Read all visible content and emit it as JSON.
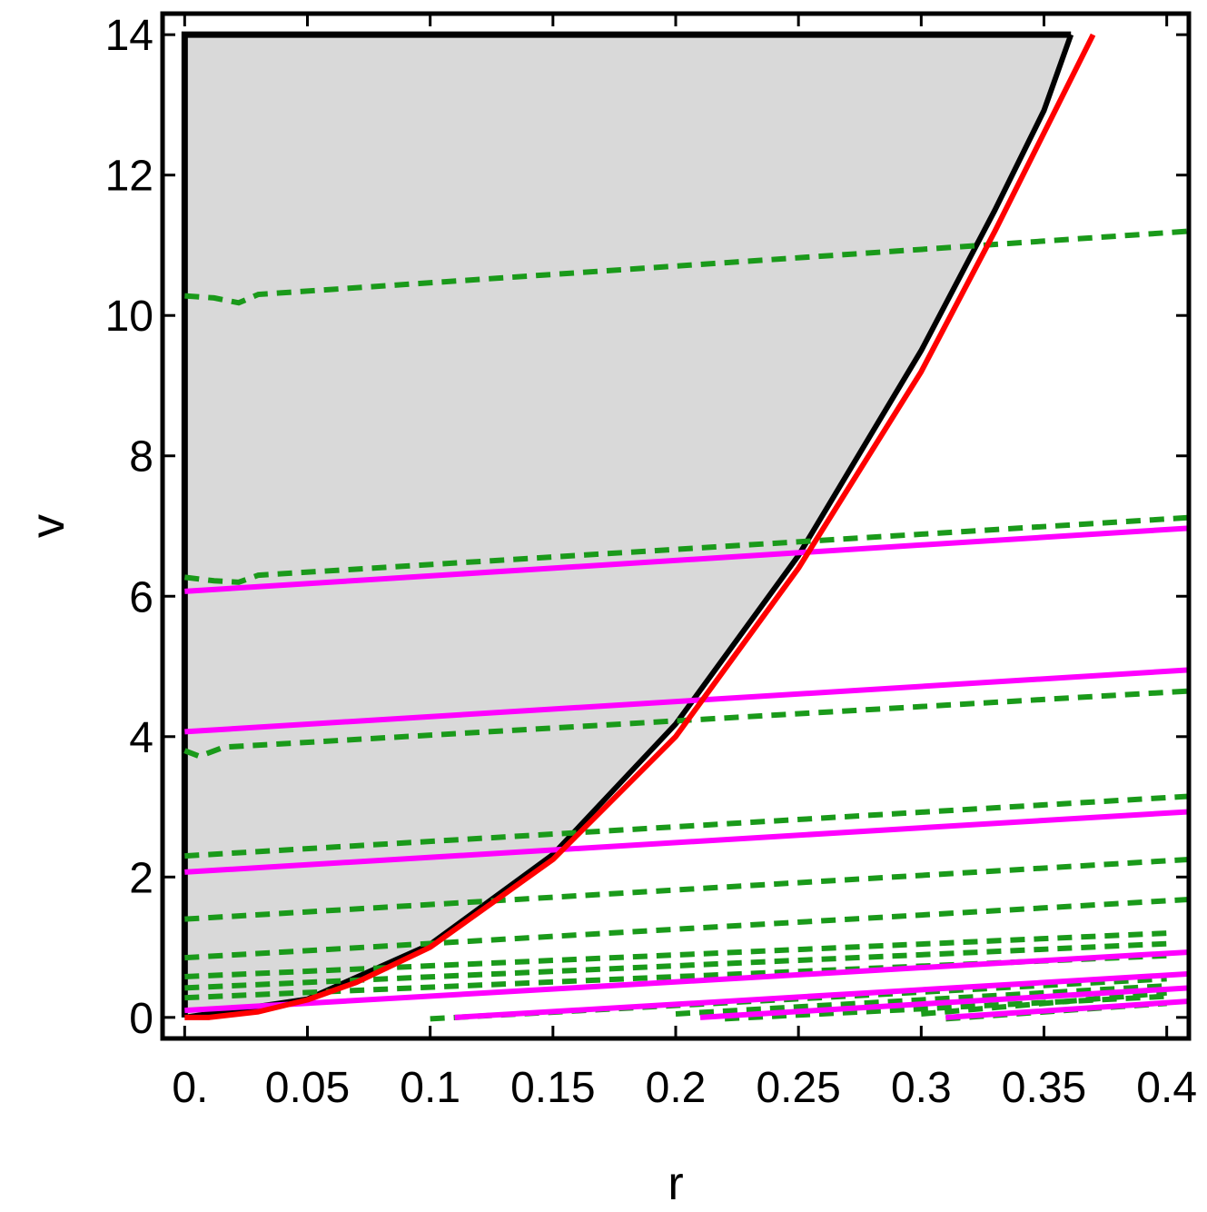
{
  "chart_data": {
    "type": "line",
    "xlabel": "r",
    "ylabel": "v",
    "xlim": [
      -0.009,
      0.409
    ],
    "ylim": [
      -0.3,
      14.3
    ],
    "x_ticks": [
      {
        "value": 0,
        "label": "0."
      },
      {
        "value": 0.05,
        "label": "0.05"
      },
      {
        "value": 0.1,
        "label": "0.1"
      },
      {
        "value": 0.15,
        "label": "0.15"
      },
      {
        "value": 0.2,
        "label": "0.2"
      },
      {
        "value": 0.25,
        "label": "0.25"
      },
      {
        "value": 0.3,
        "label": "0.3"
      },
      {
        "value": 0.35,
        "label": "0.35"
      },
      {
        "value": 0.4,
        "label": "0.4"
      }
    ],
    "y_ticks": [
      {
        "value": 0,
        "label": "0"
      },
      {
        "value": 2,
        "label": "2"
      },
      {
        "value": 4,
        "label": "4"
      },
      {
        "value": 6,
        "label": "6"
      },
      {
        "value": 8,
        "label": "8"
      },
      {
        "value": 10,
        "label": "10"
      },
      {
        "value": 12,
        "label": "12"
      },
      {
        "value": 14,
        "label": "14"
      }
    ],
    "colors": {
      "shaded_region": "#d9d9d9",
      "boundary": "#000000",
      "red_curve": "#ff0000",
      "magenta_lines": "#ff00ff",
      "green_dashed": "#1a9a1a"
    },
    "shaded_region": {
      "upper_v": 14,
      "boundary_points": [
        [
          0,
          0
        ],
        [
          0.05,
          0.26
        ],
        [
          0.1,
          1.04
        ],
        [
          0.15,
          2.32
        ],
        [
          0.2,
          4.18
        ],
        [
          0.25,
          6.58
        ],
        [
          0.3,
          9.5
        ],
        [
          0.33,
          11.5
        ],
        [
          0.35,
          12.92
        ],
        [
          0.361,
          14
        ]
      ]
    },
    "red_curve": {
      "points": [
        [
          0,
          0
        ],
        [
          0.01,
          0.0
        ],
        [
          0.03,
          0.08
        ],
        [
          0.05,
          0.25
        ],
        [
          0.07,
          0.5
        ],
        [
          0.1,
          1.0
        ],
        [
          0.15,
          2.25
        ],
        [
          0.2,
          4.0
        ],
        [
          0.25,
          6.4
        ],
        [
          0.3,
          9.2
        ],
        [
          0.33,
          11.2
        ],
        [
          0.35,
          12.6
        ],
        [
          0.37,
          14
        ]
      ]
    },
    "magenta_series": [
      {
        "x": [
          0,
          0.409
        ],
        "y": [
          6.07,
          6.97
        ]
      },
      {
        "x": [
          0,
          0.409
        ],
        "y": [
          4.07,
          4.95
        ]
      },
      {
        "x": [
          0,
          0.409
        ],
        "y": [
          2.07,
          2.93
        ]
      },
      {
        "x": [
          0,
          0.409
        ],
        "y": [
          0.1,
          0.93
        ]
      },
      {
        "x": [
          0.11,
          0.409
        ],
        "y": [
          0.0,
          0.62
        ]
      },
      {
        "x": [
          0.21,
          0.409
        ],
        "y": [
          0.0,
          0.42
        ]
      },
      {
        "x": [
          0.31,
          0.409
        ],
        "y": [
          0.0,
          0.23
        ]
      }
    ],
    "green_dashed_series": [
      {
        "x": [
          0,
          0.012,
          0.022,
          0.03,
          0.409
        ],
        "y": [
          10.28,
          10.25,
          10.18,
          10.3,
          11.2
        ]
      },
      {
        "x": [
          0,
          0.012,
          0.022,
          0.03,
          0.409
        ],
        "y": [
          6.27,
          6.22,
          6.2,
          6.3,
          7.12
        ]
      },
      {
        "x": [
          0,
          0.006,
          0.016,
          0.409
        ],
        "y": [
          3.8,
          3.72,
          3.85,
          4.65
        ]
      },
      {
        "x": [
          0,
          0.409
        ],
        "y": [
          2.3,
          3.15
        ]
      },
      {
        "x": [
          0,
          0.409
        ],
        "y": [
          1.4,
          2.25
        ]
      },
      {
        "x": [
          0,
          0.409
        ],
        "y": [
          0.85,
          1.68
        ]
      },
      {
        "x": [
          0,
          0.4
        ],
        "y": [
          0.58,
          1.2
        ]
      },
      {
        "x": [
          0,
          0.4
        ],
        "y": [
          0.42,
          1.05
        ]
      },
      {
        "x": [
          0,
          0.4
        ],
        "y": [
          0.28,
          0.88
        ]
      },
      {
        "x": [
          0.1,
          0.4
        ],
        "y": [
          -0.02,
          0.55
        ]
      },
      {
        "x": [
          0.2,
          0.4
        ],
        "y": [
          0.05,
          0.45
        ]
      },
      {
        "x": [
          0.22,
          0.4
        ],
        "y": [
          -0.02,
          0.3
        ]
      },
      {
        "x": [
          0.3,
          0.4
        ],
        "y": [
          0.05,
          0.35
        ]
      },
      {
        "x": [
          0.31,
          0.4
        ],
        "y": [
          -0.02,
          0.2
        ]
      }
    ]
  }
}
